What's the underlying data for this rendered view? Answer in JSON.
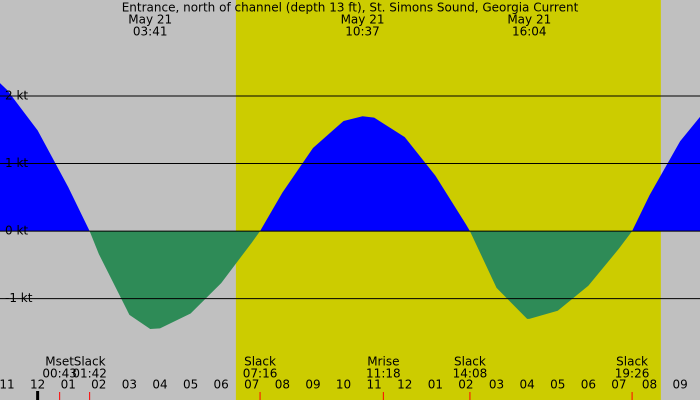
{
  "chart_data": {
    "type": "area",
    "title": "Entrance, north of channel (depth 13 ft), St. Simons Sound, Georgia Current",
    "x": [
      -1.23,
      -1,
      0,
      1,
      1.7,
      2,
      3,
      3.68,
      4,
      5,
      6,
      7,
      7.27,
      8,
      9,
      10,
      10.62,
      11,
      12,
      13,
      14,
      14.13,
      15,
      16,
      16.07,
      17,
      18,
      19,
      19.43,
      20,
      21,
      21.65
    ],
    "values": [
      2.19,
      2.09,
      1.49,
      0.65,
      0,
      -0.34,
      -1.24,
      -1.45,
      -1.44,
      -1.22,
      -0.77,
      -0.17,
      0,
      0.57,
      1.23,
      1.63,
      1.7,
      1.68,
      1.39,
      0.82,
      0.1,
      0,
      -0.84,
      -1.3,
      -1.3,
      -1.18,
      -0.81,
      -0.26,
      0,
      0.53,
      1.33,
      1.69
    ],
    "flood_color": "#0000ff",
    "ebb_color": "#2e8b57",
    "day_color": "#cccc00",
    "night_color": "#c0c0c0",
    "daylight": [
      6.48,
      20.37
    ],
    "xlim": [
      -1.23,
      21.65
    ],
    "ylim": [
      -2.5,
      3.42
    ],
    "yticks": [
      {
        "value": 2,
        "label": "2 kt"
      },
      {
        "value": 1,
        "label": "1 kt"
      },
      {
        "value": 0,
        "label": "0 kt"
      },
      {
        "value": -1,
        "label": "-1 kt"
      }
    ],
    "xticks": [
      {
        "value": -1,
        "label": "11"
      },
      {
        "value": 0,
        "label": "12"
      },
      {
        "value": 1,
        "label": "01"
      },
      {
        "value": 2,
        "label": "02"
      },
      {
        "value": 3,
        "label": "03"
      },
      {
        "value": 4,
        "label": "04"
      },
      {
        "value": 5,
        "label": "05"
      },
      {
        "value": 6,
        "label": "06"
      },
      {
        "value": 7,
        "label": "07"
      },
      {
        "value": 8,
        "label": "08"
      },
      {
        "value": 9,
        "label": "09"
      },
      {
        "value": 10,
        "label": "10"
      },
      {
        "value": 11,
        "label": "11"
      },
      {
        "value": 12,
        "label": "12"
      },
      {
        "value": 13,
        "label": "01"
      },
      {
        "value": 14,
        "label": "02"
      },
      {
        "value": 15,
        "label": "03"
      },
      {
        "value": 16,
        "label": "04"
      },
      {
        "value": 17,
        "label": "05"
      },
      {
        "value": 18,
        "label": "06"
      },
      {
        "value": 19,
        "label": "07"
      },
      {
        "value": 20,
        "label": "08"
      },
      {
        "value": 21,
        "label": "09"
      }
    ],
    "top_events": [
      {
        "date": "May 21",
        "time": "03:41",
        "x": 3.68
      },
      {
        "date": "May 21",
        "time": "10:37",
        "x": 10.62
      },
      {
        "date": "May 21",
        "time": "16:04",
        "x": 16.07
      }
    ],
    "bottom_events": [
      {
        "label": "Mset",
        "time": "00:43",
        "x": 0.72
      },
      {
        "label": "Slack",
        "time": "01:42",
        "x": 1.7
      },
      {
        "label": "Slack",
        "time": "07:16",
        "x": 7.27
      },
      {
        "label": "Mrise",
        "time": "11:18",
        "x": 11.3
      },
      {
        "label": "Slack",
        "time": "14:08",
        "x": 14.13
      },
      {
        "label": "Slack",
        "time": "19:26",
        "x": 19.43
      }
    ]
  }
}
